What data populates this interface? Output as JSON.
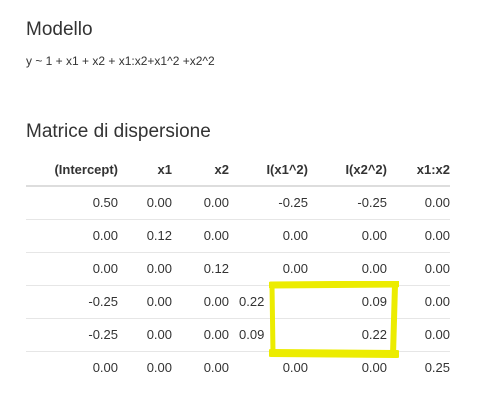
{
  "sections": {
    "model_title": "Modello",
    "formula": "y ~ 1 + x1 + x2 + x1:x2+x1^2 +x2^2",
    "matrix_title": "Matrice di dispersione"
  },
  "matrix": {
    "headers": [
      "(Intercept)",
      "x1",
      "x2",
      "I(x1^2)",
      "I(x2^2)",
      "x1:x2"
    ],
    "rows": [
      [
        "0.50",
        "0.00",
        "0.00",
        "-0.25",
        "-0.25",
        "0.00"
      ],
      [
        "0.00",
        "0.12",
        "0.00",
        "0.00",
        "0.00",
        "0.00"
      ],
      [
        "0.00",
        "0.00",
        "0.12",
        "0.00",
        "0.00",
        "0.00"
      ],
      [
        "-0.25",
        "0.00",
        "0.00",
        "0.22",
        "0.09",
        "0.00"
      ],
      [
        "-0.25",
        "0.00",
        "0.00",
        "0.09",
        "0.22",
        "0.00"
      ],
      [
        "0.00",
        "0.00",
        "0.00",
        "0.00",
        "0.00",
        "0.25"
      ]
    ]
  },
  "annotation": {
    "highlight_color": "#ecec00"
  }
}
